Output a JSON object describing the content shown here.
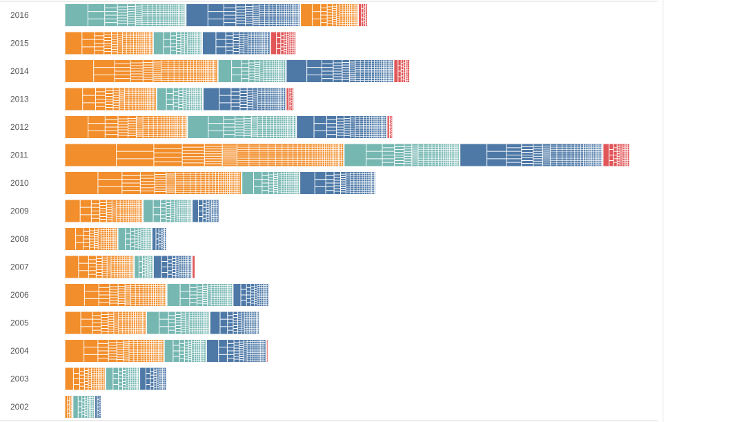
{
  "chart_data": {
    "type": "bar",
    "orientation": "horizontal",
    "stacked": true,
    "mark_style": "treemap-in-bar",
    "categories": [
      "2016",
      "2015",
      "2014",
      "2013",
      "2012",
      "2011",
      "2010",
      "2009",
      "2008",
      "2007",
      "2006",
      "2005",
      "2004",
      "2003",
      "2002"
    ],
    "x_range": [
      0,
      865
    ],
    "grid": false,
    "legend": "none",
    "series": [
      {
        "color": "#f28e2b",
        "values": [
          0,
          130,
          225,
          135,
          180,
          410,
          260,
          115,
          78,
          102,
          150,
          120,
          146,
          60,
          12
        ]
      },
      {
        "color": "#76b7b2",
        "values": [
          178,
          72,
          100,
          68,
          160,
          170,
          85,
          72,
          50,
          28,
          97,
          93,
          62,
          50,
          32
        ]
      },
      {
        "color": "#4e79a7",
        "values": [
          168,
          100,
          158,
          122,
          133,
          210,
          112,
          40,
          22,
          57,
          53,
          73,
          88,
          40,
          10
        ]
      },
      {
        "color": "#f28e2b",
        "values": [
          85,
          0,
          0,
          0,
          0,
          0,
          0,
          0,
          0,
          0,
          0,
          0,
          0,
          0,
          0
        ]
      },
      {
        "color": "#e15759",
        "values": [
          14,
          38,
          24,
          12,
          9,
          40,
          0,
          0,
          0,
          5,
          0,
          0,
          3,
          0,
          0
        ]
      }
    ]
  }
}
